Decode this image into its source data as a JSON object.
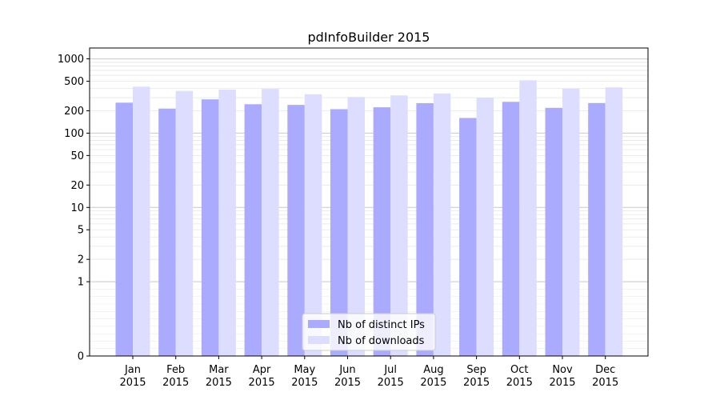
{
  "chart_data": {
    "type": "bar",
    "title": "pdInfoBuilder 2015",
    "xlabel": "",
    "ylabel": "",
    "y_scale": "symlog",
    "ylim": [
      0,
      1400
    ],
    "y_ticks": [
      0,
      1,
      2,
      5,
      10,
      20,
      50,
      100,
      200,
      500,
      1000
    ],
    "y_tick_labels": [
      "0",
      "1",
      "2",
      "5",
      "10",
      "20",
      "50",
      "100",
      "200",
      "500",
      "1000"
    ],
    "grid": true,
    "legend_position": "bottom-center",
    "categories": [
      [
        "Jan",
        "2015"
      ],
      [
        "Feb",
        "2015"
      ],
      [
        "Mar",
        "2015"
      ],
      [
        "Apr",
        "2015"
      ],
      [
        "May",
        "2015"
      ],
      [
        "Jun",
        "2015"
      ],
      [
        "Jul",
        "2015"
      ],
      [
        "Aug",
        "2015"
      ],
      [
        "Sep",
        "2015"
      ],
      [
        "Oct",
        "2015"
      ],
      [
        "Nov",
        "2015"
      ],
      [
        "Dec",
        "2015"
      ]
    ],
    "series": [
      {
        "name": "Nb of distinct IPs",
        "color": "#aaaaff",
        "values": [
          257,
          214,
          285,
          245,
          240,
          210,
          223,
          253,
          160,
          264,
          219,
          254
        ]
      },
      {
        "name": "Nb of downloads",
        "color": "#ddddff",
        "values": [
          422,
          370,
          385,
          394,
          334,
          307,
          322,
          342,
          300,
          515,
          397,
          413
        ]
      }
    ]
  }
}
